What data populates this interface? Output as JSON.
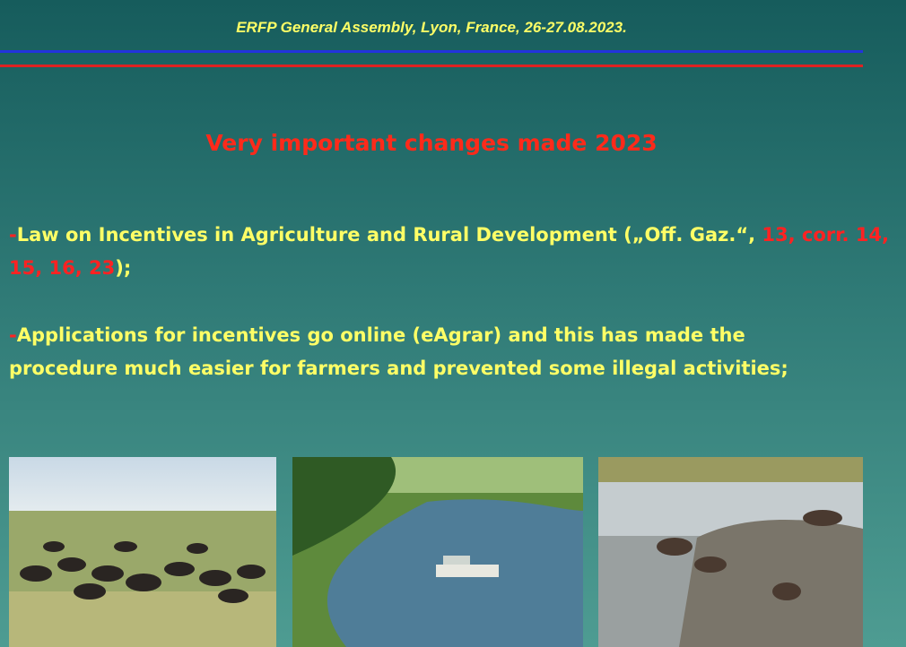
{
  "header": {
    "text": "ERFP General Assembly, Lyon, France, 26-27.08.2023."
  },
  "title": "Very important changes made 2023",
  "bullets": [
    {
      "segments": [
        "-",
        "Law on Incentives in Agriculture and Rural Development („Off. Gaz.“, ",
        "13, corr. 14, 15, 16, 23",
        ");"
      ]
    },
    {
      "segments": [
        "-",
        "Applications for incentives go online (eAgrar) and this has made the procedure much easier for farmers and prevented some illegal activities;"
      ]
    }
  ]
}
